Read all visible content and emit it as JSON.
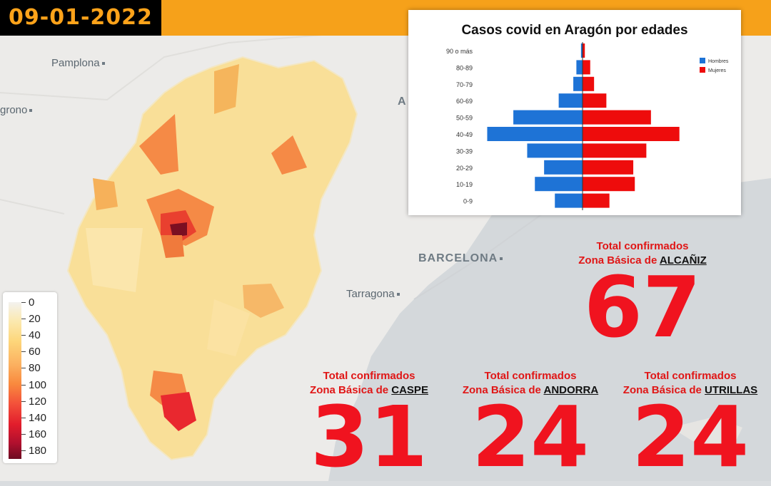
{
  "header": {
    "date": "09-01-2022"
  },
  "map_labels": {
    "pamplona": "Pamplona",
    "logrono": "grono",
    "barcelona": "BARCELONA",
    "tarragona": "Tarragona",
    "andorra_partial": "A"
  },
  "scale": {
    "labels": [
      "0",
      "20",
      "40",
      "60",
      "80",
      "100",
      "120",
      "140",
      "160",
      "180"
    ]
  },
  "pyramid": {
    "title": "Casos covid en Aragón por edades",
    "legend": {
      "men": "Hombres",
      "women": "Mujeres"
    },
    "colors": {
      "men": "#1e73d6",
      "women": "#ee0c0c"
    },
    "chart_data": {
      "type": "bar",
      "categories": [
        "90 o más",
        "80-89",
        "70-79",
        "60-69",
        "50-59",
        "40-49",
        "30-39",
        "20-29",
        "10-19",
        "0-9"
      ],
      "series": [
        {
          "name": "Hombres",
          "values": [
            2,
            8,
            12,
            31,
            90,
            124,
            72,
            50,
            62,
            36
          ]
        },
        {
          "name": "Mujeres",
          "values": [
            3,
            10,
            15,
            31,
            89,
            126,
            83,
            66,
            68,
            35
          ]
        }
      ]
    }
  },
  "stats": [
    {
      "line1": "Total confirmados",
      "prefix": "Zona Básica de ",
      "zone": "ALCAÑIZ",
      "value": "67"
    },
    {
      "line1": "Total confirmados",
      "prefix": "Zona Básica de ",
      "zone": "CASPE",
      "value": "31"
    },
    {
      "line1": "Total confirmados",
      "prefix": "Zona Básica de ",
      "zone": "ANDORRA",
      "value": "24"
    },
    {
      "line1": "Total confirmados",
      "prefix": "Zona Básica de ",
      "zone": "UTRILLAS",
      "value": "24"
    }
  ]
}
